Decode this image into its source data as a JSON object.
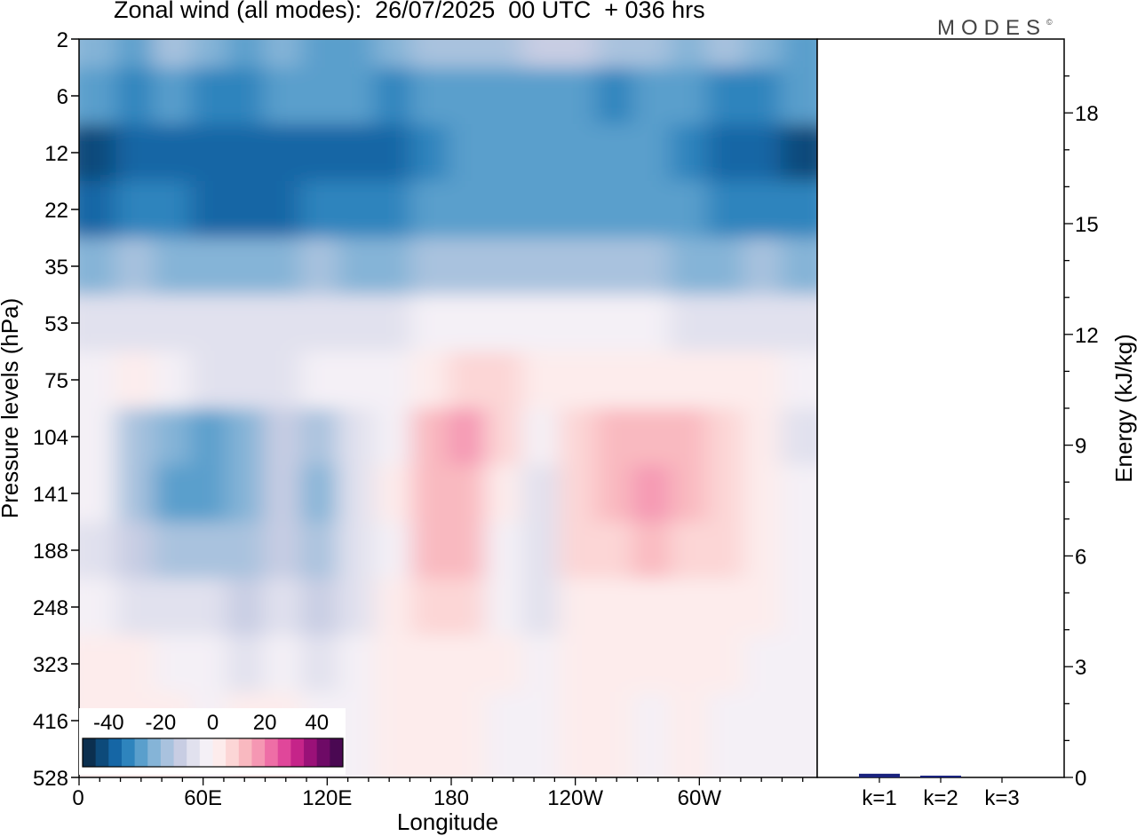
{
  "title": "Zonal wind (all modes):  26/07/2025  00 UTC  + 036 hrs",
  "logo": "MODES",
  "logo_mark": "©",
  "chart_data": [
    {
      "type": "heatmap",
      "xlabel": "Longitude",
      "ylabel": "Pressure levels (hPa)",
      "x_ticks": [
        "0",
        "60E",
        "120E",
        "180",
        "120W",
        "60W"
      ],
      "x_tick_degrees": [
        0,
        60,
        120,
        180,
        240,
        300
      ],
      "xlim": [
        0,
        357
      ],
      "y_ticks": [
        "2",
        "6",
        "12",
        "22",
        "35",
        "53",
        "75",
        "104",
        "141",
        "188",
        "248",
        "323",
        "416",
        "528"
      ],
      "colorbar": {
        "tick_labels": [
          "-40",
          "-20",
          "0",
          "20",
          "40"
        ],
        "tick_values": [
          -40,
          -20,
          0,
          20,
          40
        ],
        "range": [
          -50,
          50
        ],
        "step": 5,
        "colors": [
          "#0b2f4f",
          "#0d4a7a",
          "#1566a5",
          "#2e84bd",
          "#5a9fcc",
          "#85b4d7",
          "#a9c2de",
          "#c8cde3",
          "#e1e1ee",
          "#f4f0f6",
          "#fdecec",
          "#fcd6d6",
          "#f9b9c0",
          "#f597b3",
          "#ee6ea6",
          "#e0479a",
          "#c52489",
          "#9a1178",
          "#6e0a66",
          "#4a0852"
        ]
      },
      "zones": [
        {
          "level": "2",
          "values": [
            -22,
            -26,
            -20,
            -25,
            -28,
            -24,
            -26,
            -28,
            -25,
            -20,
            -16,
            -18,
            -14,
            -12,
            -16,
            -18,
            -22,
            -20,
            -24,
            -26
          ]
        },
        {
          "level": "6",
          "values": [
            -30,
            -32,
            -30,
            -34,
            -32,
            -30,
            -28,
            -30,
            -32,
            -30,
            -28,
            -26,
            -28,
            -30,
            -32,
            -28,
            -30,
            -32,
            -34,
            -30
          ]
        },
        {
          "level": "12",
          "values": [
            -44,
            -40,
            -38,
            -36,
            -38,
            -40,
            -38,
            -36,
            -38,
            -34,
            -28,
            -26,
            -28,
            -30,
            -26,
            -28,
            -32,
            -38,
            -36,
            -42
          ]
        },
        {
          "level": "22",
          "values": [
            -36,
            -32,
            -34,
            -36,
            -38,
            -36,
            -34,
            -32,
            -34,
            -28,
            -26,
            -26,
            -26,
            -28,
            -26,
            -26,
            -30,
            -34,
            -32,
            -34
          ]
        },
        {
          "level": "35",
          "values": [
            -22,
            -20,
            -22,
            -24,
            -24,
            -22,
            -20,
            -22,
            -22,
            -20,
            -20,
            -18,
            -20,
            -20,
            -18,
            -20,
            -22,
            -22,
            -20,
            -22
          ]
        },
        {
          "level": "53",
          "values": [
            -8,
            -6,
            -6,
            -8,
            -8,
            -6,
            -6,
            -6,
            -6,
            -2,
            -2,
            -2,
            -4,
            -4,
            -4,
            -4,
            -6,
            -6,
            -6,
            -8
          ]
        },
        {
          "level": "75",
          "values": [
            -4,
            2,
            -4,
            -6,
            -8,
            -6,
            -4,
            -2,
            -4,
            4,
            8,
            6,
            0,
            4,
            2,
            4,
            2,
            4,
            2,
            -2
          ]
        },
        {
          "level": "104",
          "values": [
            -4,
            -16,
            -24,
            -28,
            -22,
            -14,
            -18,
            -8,
            -2,
            10,
            16,
            8,
            -2,
            6,
            10,
            12,
            10,
            6,
            2,
            -6
          ]
        },
        {
          "level": "141",
          "values": [
            -4,
            -20,
            -30,
            -26,
            -22,
            -14,
            -24,
            -8,
            0,
            14,
            14,
            4,
            -6,
            6,
            12,
            18,
            12,
            6,
            2,
            -4
          ]
        },
        {
          "level": "188",
          "values": [
            -6,
            -12,
            -16,
            -18,
            -20,
            -12,
            -20,
            -8,
            -2,
            10,
            10,
            -2,
            -10,
            6,
            8,
            10,
            8,
            6,
            2,
            -4
          ]
        },
        {
          "level": "248",
          "values": [
            -2,
            -6,
            -8,
            -10,
            -12,
            -10,
            -12,
            -6,
            0,
            6,
            6,
            -2,
            -6,
            4,
            4,
            4,
            4,
            2,
            0,
            -2
          ]
        },
        {
          "level": "323",
          "values": [
            2,
            0,
            -2,
            -4,
            -6,
            -4,
            -6,
            -4,
            2,
            4,
            2,
            0,
            -4,
            2,
            2,
            0,
            2,
            0,
            -2,
            -2
          ]
        },
        {
          "level": "416",
          "values": [
            2,
            2,
            0,
            -2,
            4,
            2,
            -2,
            -2,
            2,
            2,
            0,
            -2,
            -4,
            0,
            0,
            -2,
            0,
            -2,
            -2,
            -2
          ]
        },
        {
          "level": "528",
          "values": [
            4,
            2,
            0,
            -2,
            4,
            4,
            -2,
            -2,
            2,
            2,
            0,
            -2,
            -2,
            0,
            0,
            -2,
            0,
            -2,
            -2,
            -2
          ]
        }
      ]
    },
    {
      "type": "bar",
      "ylabel": "Energy (kJ/kg)",
      "categories": [
        "k=1",
        "k=2",
        "k=3"
      ],
      "values": [
        0.1,
        0.02,
        0.0
      ],
      "ylim": [
        0,
        20
      ],
      "y_ticks": [
        0,
        3,
        6,
        9,
        12,
        15,
        18
      ],
      "color": "#1a237e"
    }
  ]
}
